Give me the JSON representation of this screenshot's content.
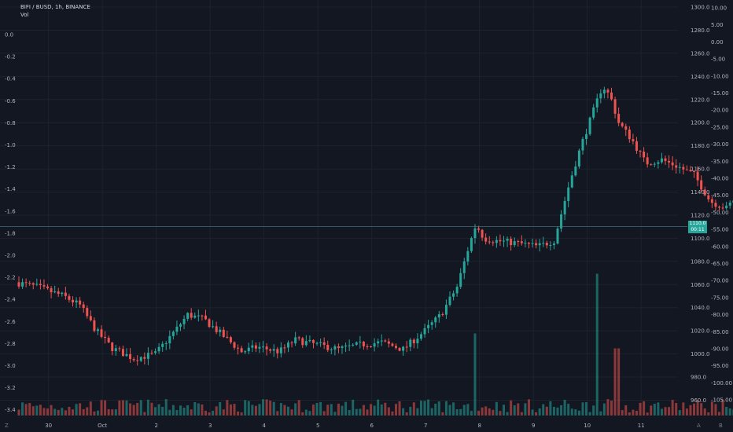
{
  "legend": {
    "symbol": "BIFI / BUSD, 1h, BINANCE",
    "vol": "Vol"
  },
  "price_tag": {
    "price": "1110.0",
    "countdown": "00:11"
  },
  "icons": {
    "bottom_left": "Z",
    "bottom_right_a": "A",
    "bottom_right_b": "B"
  },
  "colors": {
    "up": "#26a69a",
    "down": "#ef5350",
    "background": "#131722",
    "grid": "#1e222d",
    "arrow": "#3f9f8f",
    "hline": "#4d7f8f"
  },
  "chart_data": {
    "type": "candlestick",
    "title": "",
    "x_tick_labels": [
      "30",
      "Oct",
      "2",
      "3",
      "4",
      "5",
      "6",
      "7",
      "8",
      "9",
      "10",
      "11"
    ],
    "right_axis_ticks": [
      "1300.0",
      "1280.0",
      "1260.0",
      "1240.0",
      "1220.0",
      "1200.0",
      "1180.0",
      "1160.0",
      "1140.0",
      "1120.0",
      "1100.0",
      "1080.0",
      "1060.0",
      "1040.0",
      "1020.0",
      "1000.0",
      "980.0",
      "960.0"
    ],
    "far_right_axis_ticks": [
      "10.00",
      "5.00",
      "0.00",
      "-5.00",
      "-10.00",
      "-15.00",
      "-20.00",
      "-25.00",
      "-30.00",
      "-35.00",
      "-40.00",
      "-45.00",
      "-50.00",
      "-55.00",
      "-60.00",
      "-65.00",
      "-70.00",
      "-75.00",
      "-80.00",
      "-85.00",
      "-90.00",
      "-95.00",
      "-100.00",
      "-105.00"
    ],
    "left_axis_ticks": [
      "0.0",
      "-0.2",
      "-0.4",
      "-0.6",
      "-0.8",
      "-1.0",
      "-1.2",
      "-1.4",
      "-1.6",
      "-1.8",
      "-2.0",
      "-2.2",
      "-2.4",
      "-2.6",
      "-2.8",
      "-3.0",
      "-3.2",
      "-3.4"
    ],
    "price_range": [
      955,
      1300
    ],
    "current_price": 1110,
    "support_level": 1096,
    "arrow_target": 1218,
    "anchors": [
      [
        0.0,
        1062
      ],
      [
        0.4,
        1058
      ],
      [
        0.9,
        1050
      ],
      [
        1.2,
        1042
      ],
      [
        1.5,
        1020
      ],
      [
        1.8,
        1005
      ],
      [
        2.2,
        996
      ],
      [
        2.6,
        1000
      ],
      [
        3.0,
        1022
      ],
      [
        3.2,
        1034
      ],
      [
        3.5,
        1030
      ],
      [
        3.9,
        1014
      ],
      [
        4.2,
        1002
      ],
      [
        4.5,
        1006
      ],
      [
        4.9,
        1002
      ],
      [
        5.2,
        1012
      ],
      [
        5.6,
        1008
      ],
      [
        6.0,
        1004
      ],
      [
        6.4,
        1008
      ],
      [
        6.8,
        1010
      ],
      [
        7.2,
        1004
      ],
      [
        7.6,
        1020
      ],
      [
        7.9,
        1034
      ],
      [
        8.2,
        1058
      ],
      [
        8.4,
        1090
      ],
      [
        8.55,
        1112
      ],
      [
        8.7,
        1100
      ],
      [
        8.9,
        1098
      ],
      [
        9.3,
        1096
      ],
      [
        9.7,
        1093
      ],
      [
        10.0,
        1098
      ],
      [
        10.3,
        1150
      ],
      [
        10.5,
        1180
      ],
      [
        10.7,
        1206
      ],
      [
        10.9,
        1232
      ],
      [
        11.05,
        1222
      ],
      [
        11.2,
        1200
      ],
      [
        11.45,
        1185
      ],
      [
        11.7,
        1165
      ],
      [
        12.0,
        1168
      ],
      [
        12.3,
        1162
      ],
      [
        12.6,
        1155
      ],
      [
        12.9,
        1132
      ],
      [
        13.2,
        1126
      ],
      [
        13.4,
        1137
      ],
      [
        13.6,
        1138
      ],
      [
        13.9,
        1120
      ],
      [
        14.2,
        1108
      ],
      [
        14.5,
        1100
      ],
      [
        14.8,
        1098
      ],
      [
        15.1,
        1092
      ],
      [
        15.4,
        1086
      ],
      [
        15.6,
        1076
      ],
      [
        15.9,
        1090
      ],
      [
        16.2,
        1080
      ],
      [
        16.5,
        1082
      ],
      [
        16.9,
        1085
      ],
      [
        17.3,
        1090
      ],
      [
        17.7,
        1086
      ],
      [
        18.0,
        1090
      ],
      [
        18.4,
        1092
      ],
      [
        18.8,
        1084
      ],
      [
        19.1,
        1080
      ],
      [
        19.4,
        1078
      ],
      [
        19.7,
        1070
      ],
      [
        20.0,
        1062
      ],
      [
        20.2,
        1044
      ],
      [
        20.5,
        1050
      ],
      [
        20.8,
        1054
      ],
      [
        21.2,
        1050
      ],
      [
        21.6,
        1044
      ],
      [
        21.9,
        1036
      ],
      [
        22.2,
        1030
      ],
      [
        22.45,
        1022
      ],
      [
        22.7,
        1034
      ],
      [
        23.0,
        1050
      ],
      [
        23.3,
        1062
      ],
      [
        23.6,
        1058
      ],
      [
        24.0,
        1064
      ],
      [
        24.4,
        1060
      ],
      [
        24.8,
        1058
      ],
      [
        25.2,
        1062
      ],
      [
        25.6,
        1068
      ],
      [
        26.0,
        1064
      ],
      [
        26.4,
        1056
      ],
      [
        26.8,
        1050
      ],
      [
        27.2,
        1062
      ],
      [
        27.6,
        1072
      ],
      [
        28.0,
        1080
      ],
      [
        28.4,
        1092
      ],
      [
        28.7,
        1098
      ],
      [
        29.0,
        1090
      ],
      [
        29.3,
        1094
      ],
      [
        29.6,
        1104
      ],
      [
        29.9,
        1112
      ],
      [
        30.1,
        1104
      ],
      [
        30.3,
        1100
      ],
      [
        30.5,
        1110
      ]
    ],
    "volume_spikes": [
      [
        8.45,
        0.55
      ],
      [
        10.75,
        0.95
      ],
      [
        11.1,
        0.45
      ],
      [
        14.1,
        0.25
      ],
      [
        15.3,
        0.3
      ],
      [
        20.1,
        0.2
      ]
    ]
  }
}
